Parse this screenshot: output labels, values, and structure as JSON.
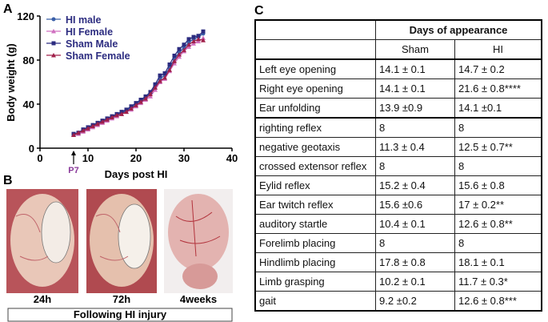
{
  "chart_data": {
    "type": "line",
    "panel_label": "A",
    "xlabel": "Days post HI",
    "ylabel": "Body weight (g)",
    "annotation": "P7",
    "annotation_x": 7,
    "x": [
      7,
      8,
      9,
      10,
      11,
      12,
      13,
      14,
      15,
      16,
      17,
      18,
      19,
      20,
      21,
      22,
      23,
      24,
      25,
      26,
      27,
      28,
      29,
      30,
      31,
      32,
      33,
      34
    ],
    "series": [
      {
        "name": "HI male",
        "color": "#3a5fa8",
        "marker": "circle",
        "values": [
          12,
          14,
          16,
          18,
          20,
          22,
          24,
          26,
          28,
          30,
          32,
          34,
          37,
          40,
          43,
          46,
          50,
          56,
          63,
          66,
          73,
          81,
          87,
          91,
          96,
          99,
          101,
          104
        ]
      },
      {
        "name": "HI Female",
        "color": "#d070c0",
        "marker": "triangle",
        "values": [
          12,
          13,
          15,
          17,
          19,
          21,
          23,
          25,
          27,
          29,
          31,
          33,
          35,
          38,
          41,
          44,
          47,
          53,
          60,
          63,
          70,
          77,
          83,
          88,
          92,
          95,
          97,
          100
        ]
      },
      {
        "name": "Sham Male",
        "color": "#2c2c80",
        "marker": "square",
        "values": [
          13,
          14,
          17,
          19,
          21,
          23,
          25,
          27,
          29,
          31,
          33,
          35,
          38,
          41,
          44,
          47,
          51,
          58,
          66,
          68,
          76,
          84,
          90,
          94,
          99,
          101,
          102,
          106
        ]
      },
      {
        "name": "Sham Female",
        "color": "#a0204a",
        "marker": "triangle",
        "values": [
          12,
          14,
          16,
          18,
          20,
          22,
          24,
          26,
          28,
          30,
          31,
          33,
          36,
          39,
          42,
          45,
          49,
          55,
          61,
          64,
          71,
          79,
          85,
          89,
          94,
          97,
          99,
          98
        ]
      }
    ],
    "xlim": [
      0,
      40
    ],
    "xticks": [
      0,
      10,
      20,
      30,
      40
    ],
    "ylim": [
      0,
      120
    ],
    "yticks": [
      0,
      40,
      80,
      120
    ],
    "legend": "upper left"
  },
  "panel_b": {
    "label": "B",
    "captions": [
      "24h",
      "72h",
      "4weeks"
    ],
    "footer": "Following HI injury"
  },
  "table": {
    "label": "C",
    "header": "Days of appearance",
    "columns": [
      "Sham",
      "HI"
    ],
    "rows": [
      [
        "Left eye opening",
        "14.1 ± 0.1",
        "14.7 ± 0.2"
      ],
      [
        "Right eye opening",
        "14.1 ± 0.1",
        "21.6 ± 0.8****"
      ],
      [
        "Ear unfolding",
        "13.9 ±0.9",
        "14.1 ±0.1"
      ],
      [
        "righting reflex",
        "8",
        "8"
      ],
      [
        "negative geotaxis",
        "11.3 ± 0.4",
        "12.5 ± 0.7**"
      ],
      [
        "crossed extensor reflex",
        "8",
        "8"
      ],
      [
        "Eylid reflex",
        "15.2 ± 0.4",
        "15.6 ± 0.8"
      ],
      [
        "Ear twitch reflex",
        "15.6 ±0.6",
        "17 ± 0.2**"
      ],
      [
        "auditory startle",
        "10.4 ± 0.1",
        "12.6 ± 0.8**"
      ],
      [
        "Forelimb placing",
        "8",
        "8"
      ],
      [
        "Hindlimb placing",
        "17.8 ± 0.8",
        "18.1 ± 0.1"
      ],
      [
        "Limb grasping",
        "10.2 ± 0.1",
        "11.7 ± 0.3*"
      ],
      [
        "gait",
        "9.2 ±0.2",
        "12.6 ± 0.8***"
      ]
    ]
  }
}
